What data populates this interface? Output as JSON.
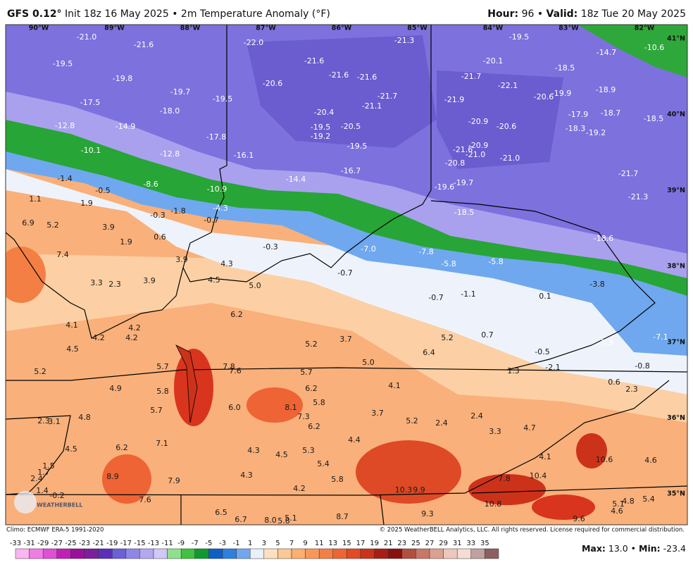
{
  "header": {
    "model": "GFS 0.12°",
    "info": "Init 18z 16 May 2025 • 2m Temperature Anomaly (°F)",
    "hour_label": "Hour:",
    "hour": "96 •",
    "valid_label": "Valid:",
    "valid": "18z Tue 20 May 2025"
  },
  "map": {
    "lon_labels": [
      "90°W",
      "89°W",
      "88°W",
      "87°W",
      "86°W",
      "85°W",
      "84°W",
      "83°W",
      "82°W"
    ],
    "lat_labels": [
      "41°N",
      "40°N",
      "39°N",
      "38°N",
      "37°N",
      "36°N",
      "35°N"
    ],
    "logo": "WEATHERBELL",
    "labels": [
      "-21.0",
      "-21.6",
      "-22.0",
      "-21.3",
      "-19.5",
      "-14.7",
      "-10.6",
      "-19.5",
      "-21.6",
      "-20.1",
      "-18.5",
      "-19.8",
      "-21.6",
      "-21.6",
      "-21.7",
      "-22.1",
      "-18.9",
      "-20.6",
      "-19.7",
      "-21.7",
      "-19.9",
      "-20.6",
      "-17.5",
      "-19.5",
      "-21.1",
      "-21.9",
      "-18.0",
      "-20.4",
      "-17.9",
      "-18.7",
      "-18.5",
      "-12.8",
      "-14.9",
      "-19.5",
      "-20.5",
      "-20.9",
      "-20.6",
      "-18.3",
      "-19.2",
      "-19.2",
      "-17.8",
      "-19.5",
      "-20.9",
      "-21.6",
      "-21.0",
      "-21.0",
      "-20.8",
      "-10.1",
      "-12.8",
      "-16.1",
      "-16.7",
      "-14.4",
      "-21.7",
      "-1.4",
      "-8.6",
      "-19.6",
      "-19.7",
      "-10.9",
      "-21.3",
      "1.1",
      "-0.5",
      "1.9",
      "-4.3",
      "-18.5",
      "-1.8",
      "-0.3",
      "-0.7",
      "6.9",
      "5.2",
      "3.9",
      "0.6",
      "1.9",
      "-0.3",
      "-18.6",
      "-7.0",
      "-7.8",
      "7.4",
      "3.9",
      "4.3",
      "-5.8",
      "-5.8",
      "-0.7",
      "3.3",
      "2.3",
      "3.9",
      "4.5",
      "5.0",
      "-3.8",
      "-0.7",
      "-1.1",
      "0.1",
      "6.2",
      "4.1",
      "4.2",
      "4.2",
      "4.2",
      "0.7",
      "5.2",
      "3.7",
      "5.2",
      "4.5",
      "6.4",
      "-0.5",
      "-7.3",
      "-7.1",
      "5.7",
      "7.8",
      "7.6",
      "5.0",
      "5.7",
      "5.2",
      "1.3",
      "-2.1",
      "-0.8",
      "4.9",
      "5.8",
      "6.2",
      "4.1",
      "0.6",
      "2.3",
      "6.0",
      "8.1",
      "5.8",
      "5.7",
      "3.7",
      "2.3",
      "3.1",
      "4.8",
      "7.3",
      "5.2",
      "2.4",
      "2.4",
      "4.7",
      "3.3",
      "6.2",
      "7.1",
      "6.2",
      "4.5",
      "4.4",
      "4.3",
      "4.5",
      "5.3",
      "4.1",
      "10.6",
      "4.6",
      "1.5",
      "5.4",
      "8.9",
      "2.4",
      "1.7",
      "4.3",
      "10.4",
      "7.9",
      "7.8",
      "5.8",
      "1.4",
      "-0.2",
      "4.2",
      "10.3",
      "9.9",
      "7.6",
      "9.3",
      "10.8",
      "5.1",
      "4.8",
      "5.4",
      "4.6",
      "9.6",
      "6.5",
      "6.7",
      "8.0",
      "5.8",
      "5.1",
      "8.7"
    ]
  },
  "footer": {
    "climo": "Climo: ECMWF ERA-5 1991-2020",
    "copyright": "© 2025 WeatherBELL Analytics, LLC. All rights reserved. License required for commercial distribution.",
    "max_label": "Max:",
    "max": "13.0 •",
    "min_label": "Min:",
    "min": "-23.4"
  },
  "colorbar": {
    "ticks": [
      -33,
      -31,
      -29,
      -27,
      -25,
      -23,
      -21,
      -19,
      -17,
      -15,
      -13,
      -11,
      -9,
      -7,
      -5,
      -3,
      -1,
      1,
      3,
      5,
      7,
      9,
      11,
      13,
      15,
      17,
      19,
      21,
      23,
      25,
      27,
      29,
      31,
      33,
      35
    ],
    "colors": [
      "#f9b6f0",
      "#f07de6",
      "#e04fd4",
      "#c21fb8",
      "#9b0f9a",
      "#7a1f9e",
      "#5b2fb8",
      "#6d5fd8",
      "#8f86e6",
      "#b3a8f0",
      "#d0c8f7",
      "#8ee08e",
      "#3fc23f",
      "#0f9a2f",
      "#0f5fc8",
      "#2f7fe0",
      "#6fa8ee",
      "#e8f0fa",
      "#fde0c0",
      "#fcc896",
      "#fab070",
      "#f89858",
      "#f47f44",
      "#ee6434",
      "#e44a26",
      "#cc321a",
      "#aa1d12",
      "#8a1010",
      "#b05040",
      "#c87868",
      "#dca090",
      "#ecc8bc",
      "#f5dcd5",
      "#c0a0a0",
      "#8c6060"
    ]
  }
}
